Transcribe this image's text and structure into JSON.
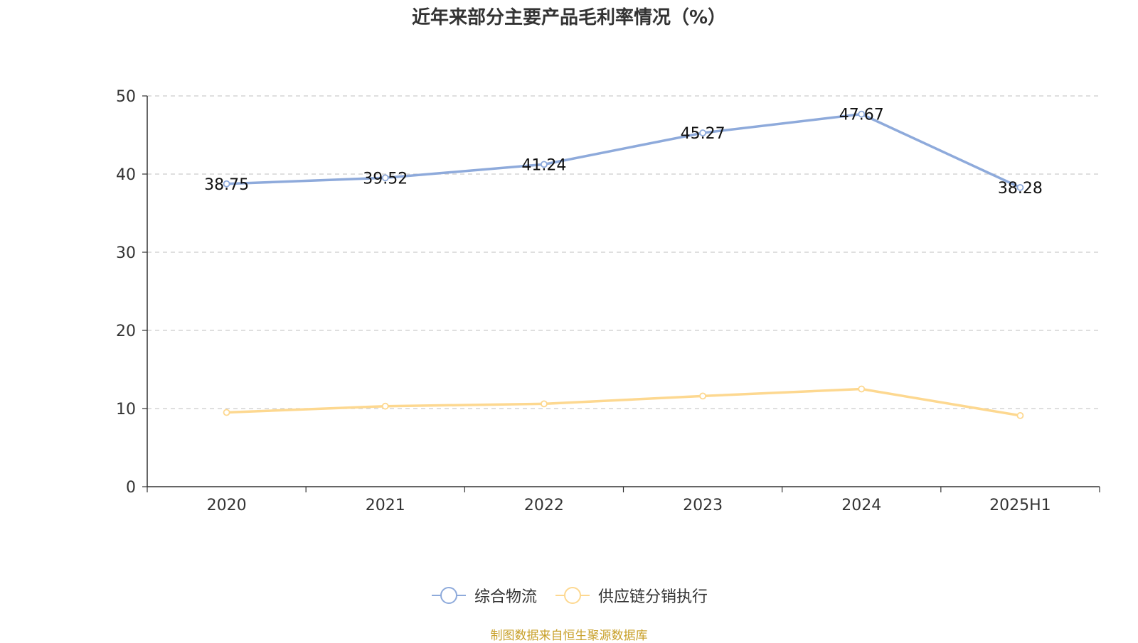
{
  "chart_data": {
    "type": "line",
    "title": "近年来部分主要产品毛利率情况（%）",
    "categories": [
      "2020",
      "2021",
      "2022",
      "2023",
      "2024",
      "2025H1"
    ],
    "ylim": [
      0,
      50
    ],
    "yticks": [
      "0",
      "10",
      "20",
      "30",
      "40",
      "50"
    ],
    "grid": true,
    "legend": "bottom",
    "series": [
      {
        "name": "综合物流",
        "values": [
          38.75,
          39.52,
          41.24,
          45.27,
          47.67,
          38.28
        ],
        "color": "#8eaadb",
        "labels": [
          "38.75",
          "39.52",
          "41.24",
          "45.27",
          "47.67",
          "38.28"
        ]
      },
      {
        "name": "供应链分销执行",
        "values": [
          9.5,
          10.3,
          10.6,
          11.6,
          12.5,
          9.1
        ],
        "color": "#fdd890"
      }
    ]
  },
  "source": "制图数据来自恒生聚源数据库"
}
